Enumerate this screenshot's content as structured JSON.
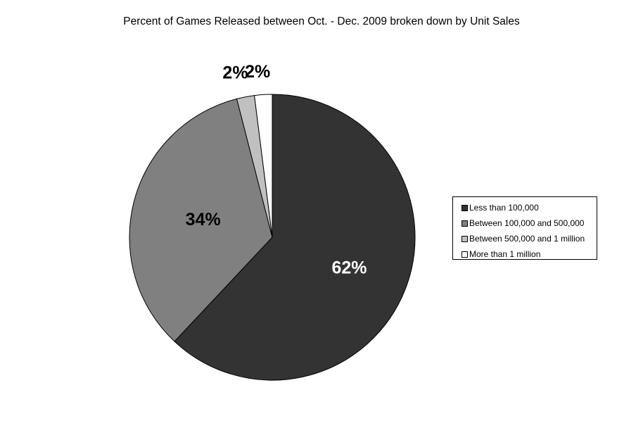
{
  "chart_data": {
    "type": "pie",
    "title": "Percent of Games Released between Oct. - Dec. 2009 broken down by Unit Sales",
    "categories": [
      "Less than 100,000",
      "Between 100,000 and 500,000",
      "Between 500,000 and 1 million",
      "More than 1 million"
    ],
    "values": [
      62,
      34,
      2,
      2
    ],
    "labels": [
      "62%",
      "34%",
      "2%",
      "2%"
    ],
    "colors": [
      "#333333",
      "#808080",
      "#c0c0c0",
      "#ffffff"
    ],
    "label_colors": [
      "#ffffff",
      "#000000",
      "#000000",
      "#000000"
    ],
    "legend_position": "right"
  }
}
